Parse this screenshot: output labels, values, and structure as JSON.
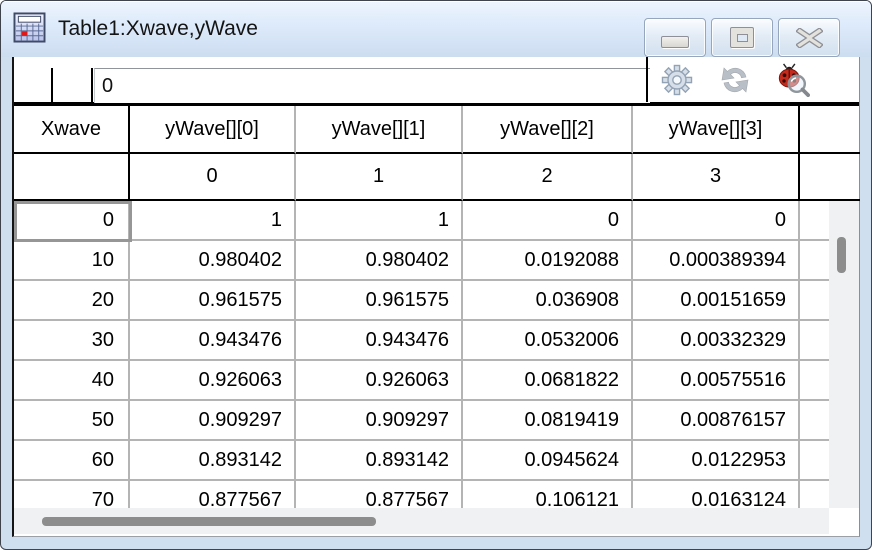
{
  "window": {
    "title": "Table1:Xwave,yWave",
    "icon": "table-icon",
    "buttons": [
      {
        "name": "minimize"
      },
      {
        "name": "restore"
      },
      {
        "name": "close"
      }
    ]
  },
  "entry_bar": {
    "value": "0",
    "toolbar_icons": [
      "gear-icon",
      "refresh-icon",
      "debugger-search-icon"
    ]
  },
  "table": {
    "columns": [
      {
        "label": "Xwave",
        "index": "",
        "values": [
          "0",
          "10",
          "20",
          "30",
          "40",
          "50",
          "60",
          "70"
        ]
      },
      {
        "label": "yWave[][0]",
        "index": "0",
        "values": [
          "1",
          "0.980402",
          "0.961575",
          "0.943476",
          "0.926063",
          "0.909297",
          "0.893142",
          "0.877567"
        ]
      },
      {
        "label": "yWave[][1]",
        "index": "1",
        "values": [
          "1",
          "0.980402",
          "0.961575",
          "0.943476",
          "0.926063",
          "0.909297",
          "0.893142",
          "0.877567"
        ]
      },
      {
        "label": "yWave[][2]",
        "index": "2",
        "values": [
          "0",
          "0.0192088",
          "0.036908",
          "0.0532006",
          "0.0681822",
          "0.0819419",
          "0.0945624",
          "0.106121"
        ]
      },
      {
        "label": "yWave[][3]",
        "index": "3",
        "values": [
          "0",
          "0.000389394",
          "0.00151659",
          "0.00332329",
          "0.00575516",
          "0.00876157",
          "0.0122953",
          "0.0163124"
        ]
      }
    ],
    "selection": {
      "row": 0,
      "column": 0
    }
  },
  "colors": {
    "titlebar_blue": "#dceafb",
    "frame_blue": "#cfdff0",
    "header_line": "#000000",
    "grid_line": "#b4b4b4",
    "selection_border": "#969696",
    "scrollbar_thumb": "#8d8d8d",
    "scrollbar_track": "#eff1f2",
    "ladybug_red": "#c42b1c"
  }
}
